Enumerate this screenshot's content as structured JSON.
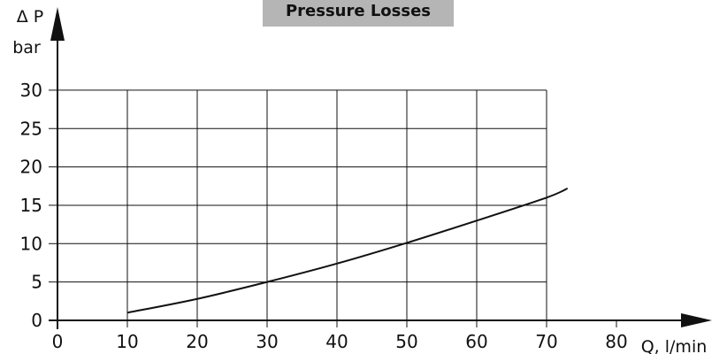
{
  "chart_data": {
    "type": "line",
    "title": "Pressure Losses",
    "xlabel": "Q, l/min",
    "ylabel": "bar",
    "ylabel_symbol": "Δ P",
    "xlim": [
      0,
      80
    ],
    "ylim": [
      0,
      30
    ],
    "x_ticks": [
      "0",
      "10",
      "20",
      "30",
      "40",
      "50",
      "60",
      "70",
      "80"
    ],
    "y_ticks": [
      "0",
      "5",
      "10",
      "15",
      "20",
      "25",
      "30"
    ],
    "grid": true,
    "series": [
      {
        "x": [
          10,
          20,
          30,
          40,
          50,
          60,
          70,
          73
        ],
        "y": [
          1,
          2.8,
          5,
          7.4,
          10.1,
          13,
          16,
          17.2
        ]
      }
    ],
    "colors": {
      "line": "#111111",
      "grid": "#111111",
      "title_background": "#b5b5b5"
    }
  }
}
